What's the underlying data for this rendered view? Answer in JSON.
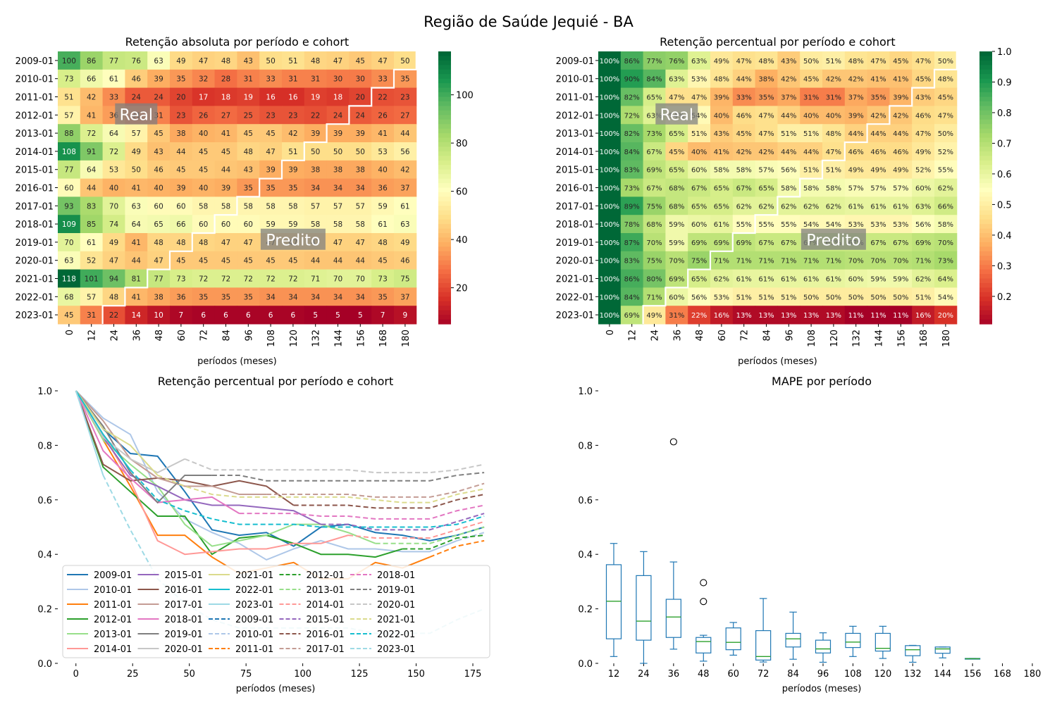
{
  "suptitle": "Região de Saúde Jequié - BA",
  "cohorts": [
    "2009-01",
    "2010-01",
    "2011-01",
    "2012-01",
    "2013-01",
    "2014-01",
    "2015-01",
    "2016-01",
    "2017-01",
    "2018-01",
    "2019-01",
    "2020-01",
    "2021-01",
    "2022-01",
    "2023-01"
  ],
  "periods": [
    0,
    12,
    24,
    36,
    48,
    60,
    72,
    84,
    96,
    108,
    120,
    132,
    144,
    156,
    168,
    180
  ],
  "observed_periods": [
    180,
    168,
    156,
    144,
    132,
    120,
    108,
    96,
    84,
    72,
    60,
    48,
    36,
    24,
    12
  ],
  "colors": {
    "cohort_solid": [
      "#1f77b4",
      "#aec7e8",
      "#ff7f0e",
      "#2ca02c",
      "#98df8a",
      "#ff9896",
      "#9467bd",
      "#8c564b",
      "#c49c94",
      "#e377c2",
      "#7f7f7f",
      "#c7c7c7",
      "#dbdb8d",
      "#17becf",
      "#9edae5"
    ],
    "cohort_dashed": [
      "#1f77b4",
      "#aec7e8",
      "#ff7f0e",
      "#2ca02c",
      "#98df8a",
      "#ff9896",
      "#9467bd",
      "#8c564b",
      "#c49c94",
      "#e377c2",
      "#7f7f7f",
      "#c7c7c7",
      "#dbdb8d",
      "#17becf",
      "#9edae5"
    ],
    "boxplot_box": "#1f77b4",
    "boxplot_median": "#2ca02c",
    "cutoff_line": "#ffffff"
  },
  "chart_data": [
    {
      "type": "heatmap",
      "title": "Retenção absoluta por período e cohort",
      "xlabel": "períodos (meses)",
      "ylabel": "",
      "colormap": "RdYlGn",
      "colorbar_range": [
        5,
        118
      ],
      "colorbar_ticks": [
        20,
        40,
        60,
        80,
        100
      ],
      "annotations": [
        {
          "text": "Real"
        },
        {
          "text": "Predito"
        }
      ],
      "values": [
        [
          100,
          86,
          77,
          76,
          63,
          49,
          47,
          48,
          43,
          50,
          51,
          48,
          47,
          45,
          47,
          50
        ],
        [
          73,
          66,
          61,
          46,
          39,
          35,
          32,
          28,
          31,
          33,
          31,
          31,
          30,
          30,
          33,
          35
        ],
        [
          51,
          42,
          33,
          24,
          24,
          20,
          17,
          18,
          19,
          16,
          16,
          19,
          18,
          20,
          22,
          23
        ],
        [
          57,
          41,
          36,
          31,
          31,
          23,
          26,
          27,
          25,
          23,
          23,
          22,
          24,
          24,
          26,
          27
        ],
        [
          88,
          72,
          64,
          57,
          45,
          38,
          40,
          41,
          45,
          45,
          42,
          39,
          39,
          39,
          41,
          44
        ],
        [
          108,
          91,
          72,
          49,
          43,
          44,
          45,
          45,
          48,
          47,
          51,
          50,
          50,
          50,
          53,
          56
        ],
        [
          77,
          64,
          53,
          50,
          46,
          45,
          45,
          44,
          43,
          39,
          39,
          38,
          38,
          38,
          40,
          42
        ],
        [
          60,
          44,
          40,
          41,
          40,
          39,
          40,
          39,
          35,
          35,
          35,
          34,
          34,
          34,
          36,
          37
        ],
        [
          93,
          83,
          70,
          63,
          60,
          60,
          58,
          58,
          58,
          58,
          58,
          57,
          57,
          57,
          59,
          61
        ],
        [
          109,
          85,
          74,
          64,
          65,
          66,
          60,
          60,
          60,
          59,
          59,
          58,
          58,
          58,
          61,
          63
        ],
        [
          70,
          61,
          49,
          41,
          48,
          48,
          48,
          47,
          47,
          47,
          47,
          47,
          47,
          47,
          48,
          49
        ],
        [
          63,
          52,
          47,
          44,
          47,
          45,
          45,
          45,
          45,
          45,
          45,
          44,
          44,
          44,
          45,
          46
        ],
        [
          118,
          101,
          94,
          81,
          77,
          73,
          72,
          72,
          72,
          72,
          72,
          71,
          70,
          70,
          73,
          75
        ],
        [
          68,
          57,
          48,
          41,
          38,
          36,
          35,
          35,
          35,
          34,
          34,
          34,
          34,
          34,
          35,
          37
        ],
        [
          45,
          31,
          22,
          14,
          10,
          7,
          6,
          6,
          6,
          6,
          6,
          5,
          5,
          5,
          7,
          9
        ]
      ]
    },
    {
      "type": "heatmap",
      "title": "Retenção percentual por período e cohort",
      "xlabel": "períodos (meses)",
      "ylabel": "",
      "colormap": "RdYlGn",
      "colorbar_range": [
        0.11,
        1.0
      ],
      "colorbar_ticks": [
        0.2,
        0.3,
        0.4,
        0.5,
        0.6,
        0.7,
        0.8,
        0.9,
        1.0
      ],
      "annotations": [
        {
          "text": "Real"
        },
        {
          "text": "Predito"
        }
      ],
      "values": [
        [
          100,
          86,
          77,
          76,
          63,
          49,
          47,
          48,
          43,
          50,
          51,
          48,
          47,
          45,
          47,
          50
        ],
        [
          100,
          90,
          84,
          63,
          53,
          48,
          44,
          38,
          42,
          45,
          42,
          42,
          41,
          41,
          45,
          48
        ],
        [
          100,
          82,
          65,
          47,
          47,
          39,
          33,
          35,
          37,
          31,
          31,
          37,
          35,
          39,
          43,
          45
        ],
        [
          100,
          72,
          63,
          54,
          54,
          40,
          46,
          47,
          44,
          40,
          40,
          39,
          42,
          42,
          46,
          47
        ],
        [
          100,
          82,
          73,
          65,
          51,
          43,
          45,
          47,
          51,
          51,
          48,
          44,
          44,
          44,
          47,
          50
        ],
        [
          100,
          84,
          67,
          45,
          40,
          41,
          42,
          42,
          44,
          44,
          47,
          46,
          46,
          46,
          49,
          52
        ],
        [
          100,
          83,
          69,
          65,
          60,
          58,
          58,
          57,
          56,
          51,
          51,
          49,
          49,
          49,
          52,
          55
        ],
        [
          100,
          73,
          67,
          68,
          67,
          65,
          67,
          65,
          58,
          58,
          58,
          57,
          57,
          57,
          60,
          62
        ],
        [
          100,
          89,
          75,
          68,
          65,
          65,
          62,
          62,
          62,
          62,
          62,
          61,
          61,
          61,
          63,
          66
        ],
        [
          100,
          78,
          68,
          59,
          60,
          61,
          55,
          55,
          55,
          54,
          54,
          53,
          53,
          53,
          56,
          58
        ],
        [
          100,
          87,
          70,
          59,
          69,
          69,
          69,
          67,
          67,
          67,
          67,
          67,
          67,
          67,
          69,
          70
        ],
        [
          100,
          83,
          75,
          70,
          75,
          71,
          71,
          71,
          71,
          71,
          71,
          70,
          70,
          70,
          71,
          73
        ],
        [
          100,
          86,
          80,
          69,
          65,
          62,
          61,
          61,
          61,
          61,
          61,
          60,
          59,
          59,
          62,
          64
        ],
        [
          100,
          84,
          71,
          60,
          56,
          53,
          51,
          51,
          51,
          50,
          50,
          50,
          50,
          50,
          51,
          54
        ],
        [
          100,
          69,
          49,
          31,
          22,
          16,
          13,
          13,
          13,
          13,
          13,
          11,
          11,
          11,
          16,
          20
        ]
      ]
    },
    {
      "type": "line",
      "title": "Retenção percentual por período e cohort",
      "xlabel": "períodos (meses)",
      "ylabel": "",
      "xlim": [
        -8,
        184
      ],
      "ylim": [
        0,
        1.0
      ],
      "xticks": [
        0,
        25,
        50,
        75,
        100,
        125,
        150,
        175
      ],
      "yticks": [
        0.0,
        0.2,
        0.4,
        0.6,
        0.8,
        1.0
      ],
      "legend_location": "lower-left",
      "legend_columns": 6,
      "legend_solid": [
        "2009-01",
        "2010-01",
        "2011-01",
        "2012-01",
        "2013-01",
        "2014-01",
        "2015-01",
        "2016-01",
        "2017-01",
        "2018-01",
        "2019-01",
        "2020-01",
        "2021-01",
        "2022-01",
        "2023-01"
      ],
      "legend_dashed": [
        "2009-01",
        "2010-01",
        "2011-01",
        "2012-01",
        "2013-01",
        "2014-01",
        "2015-01",
        "2016-01",
        "2017-01",
        "2018-01",
        "2019-01",
        "2020-01",
        "2021-01",
        "2022-01",
        "2023-01"
      ],
      "series_note": "solid = observed cohort retention, dashed = predicted continuation"
    },
    {
      "type": "box",
      "title": "MAPE por período",
      "xlabel": "períodos (meses)",
      "ylabel": "",
      "ylim": [
        0,
        1.0
      ],
      "yticks": [
        0.0,
        0.2,
        0.4,
        0.6,
        0.8,
        1.0
      ],
      "categories": [
        12,
        24,
        36,
        48,
        60,
        72,
        84,
        96,
        108,
        120,
        132,
        144,
        156,
        168,
        180
      ],
      "boxes": [
        {
          "period": 12,
          "whislo": 0.025,
          "q1": 0.09,
          "med": 0.228,
          "q3": 0.362,
          "whishi": 0.44,
          "fliers": []
        },
        {
          "period": 24,
          "whislo": 0.0,
          "q1": 0.085,
          "med": 0.155,
          "q3": 0.322,
          "whishi": 0.41,
          "fliers": []
        },
        {
          "period": 36,
          "whislo": 0.052,
          "q1": 0.095,
          "med": 0.17,
          "q3": 0.235,
          "whishi": 0.372,
          "fliers": [
            0.813
          ]
        },
        {
          "period": 48,
          "whislo": 0.008,
          "q1": 0.038,
          "med": 0.08,
          "q3": 0.095,
          "whishi": 0.103,
          "fliers": [
            0.227,
            0.296
          ]
        },
        {
          "period": 60,
          "whislo": 0.03,
          "q1": 0.05,
          "med": 0.077,
          "q3": 0.13,
          "whishi": 0.15,
          "fliers": []
        },
        {
          "period": 72,
          "whislo": 0.005,
          "q1": 0.012,
          "med": 0.025,
          "q3": 0.12,
          "whishi": 0.238,
          "fliers": []
        },
        {
          "period": 84,
          "whislo": 0.015,
          "q1": 0.06,
          "med": 0.09,
          "q3": 0.11,
          "whishi": 0.188,
          "fliers": []
        },
        {
          "period": 96,
          "whislo": 0.004,
          "q1": 0.038,
          "med": 0.053,
          "q3": 0.085,
          "whishi": 0.112,
          "fliers": []
        },
        {
          "period": 108,
          "whislo": 0.025,
          "q1": 0.058,
          "med": 0.078,
          "q3": 0.11,
          "whishi": 0.136,
          "fliers": []
        },
        {
          "period": 120,
          "whislo": 0.018,
          "q1": 0.045,
          "med": 0.055,
          "q3": 0.11,
          "whishi": 0.136,
          "fliers": []
        },
        {
          "period": 132,
          "whislo": 0.004,
          "q1": 0.028,
          "med": 0.05,
          "q3": 0.065,
          "whishi": 0.066,
          "fliers": []
        },
        {
          "period": 144,
          "whislo": 0.02,
          "q1": 0.037,
          "med": 0.053,
          "q3": 0.06,
          "whishi": 0.06,
          "fliers": []
        },
        {
          "period": 156,
          "whislo": 0.016,
          "q1": 0.016,
          "med": 0.017,
          "q3": 0.018,
          "whishi": 0.018,
          "fliers": []
        }
      ]
    }
  ]
}
